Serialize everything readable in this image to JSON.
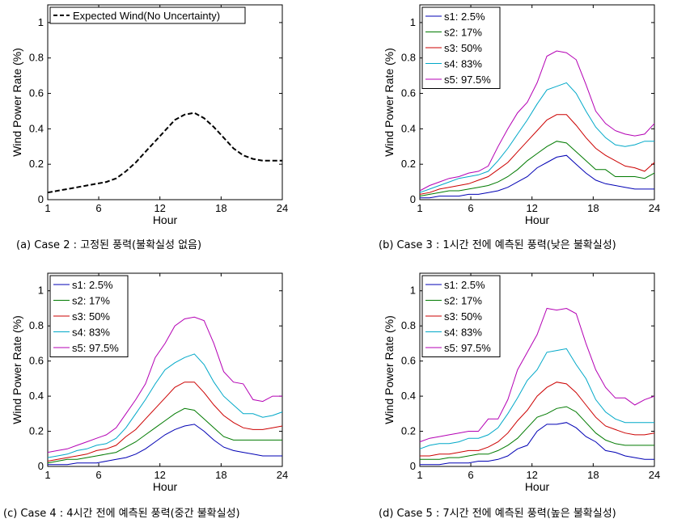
{
  "chart_data": [
    {
      "id": "a",
      "type": "line",
      "caption": "(a) Case 2 : 고정된 풍력(불확실성 없음)",
      "xlabel": "Hour",
      "ylabel": "Wind Power Rate (%)",
      "xlim": [
        1,
        24
      ],
      "ylim": [
        0,
        1.1
      ],
      "xticks": [
        "1",
        "6",
        "12",
        "18",
        "24"
      ],
      "yticks": [
        "0",
        "0.2",
        "0.4",
        "0.6",
        "0.8",
        "1"
      ],
      "legend_position": "top-left",
      "series": [
        {
          "name": "Expected Wind(No Uncertainty)",
          "color": "#000000",
          "dashed": true,
          "values": [
            0.04,
            0.05,
            0.06,
            0.07,
            0.08,
            0.09,
            0.1,
            0.12,
            0.16,
            0.21,
            0.27,
            0.33,
            0.39,
            0.45,
            0.48,
            0.49,
            0.46,
            0.41,
            0.35,
            0.29,
            0.25,
            0.23,
            0.22,
            0.22,
            0.22
          ]
        }
      ]
    },
    {
      "id": "b",
      "type": "line",
      "caption": "(b) Case 3 : 1시간 전에 예측된 풍력(낮은 불확실성)",
      "xlabel": "Hour",
      "ylabel": "Wind Power Rate (%)",
      "xlim": [
        1,
        24
      ],
      "ylim": [
        0,
        1.1
      ],
      "xticks": [
        "1",
        "6",
        "12",
        "18",
        "24"
      ],
      "yticks": [
        "0",
        "0.2",
        "0.4",
        "0.6",
        "0.8",
        "1"
      ],
      "legend_position": "top-left",
      "series": [
        {
          "name": "s1: 2.5%",
          "color": "#0000b4",
          "values": [
            0.01,
            0.01,
            0.02,
            0.02,
            0.02,
            0.03,
            0.03,
            0.04,
            0.05,
            0.07,
            0.1,
            0.13,
            0.18,
            0.21,
            0.24,
            0.25,
            0.2,
            0.15,
            0.11,
            0.09,
            0.08,
            0.07,
            0.06,
            0.06,
            0.06
          ]
        },
        {
          "name": "s2: 17%",
          "color": "#007a00",
          "values": [
            0.02,
            0.03,
            0.04,
            0.05,
            0.05,
            0.06,
            0.07,
            0.08,
            0.1,
            0.13,
            0.17,
            0.22,
            0.26,
            0.3,
            0.33,
            0.32,
            0.27,
            0.22,
            0.17,
            0.17,
            0.13,
            0.13,
            0.13,
            0.12,
            0.15
          ]
        },
        {
          "name": "s3: 50%",
          "color": "#cc0000",
          "values": [
            0.03,
            0.04,
            0.06,
            0.07,
            0.08,
            0.09,
            0.11,
            0.13,
            0.17,
            0.21,
            0.27,
            0.33,
            0.39,
            0.45,
            0.48,
            0.48,
            0.42,
            0.35,
            0.29,
            0.25,
            0.22,
            0.19,
            0.18,
            0.16,
            0.21
          ]
        },
        {
          "name": "s4: 83%",
          "color": "#00a8c8",
          "values": [
            0.04,
            0.06,
            0.08,
            0.1,
            0.12,
            0.13,
            0.14,
            0.16,
            0.22,
            0.29,
            0.37,
            0.45,
            0.54,
            0.62,
            0.64,
            0.66,
            0.6,
            0.5,
            0.41,
            0.35,
            0.31,
            0.3,
            0.31,
            0.33,
            0.33
          ]
        },
        {
          "name": "s5: 97.5%",
          "color": "#b400b4",
          "values": [
            0.05,
            0.08,
            0.1,
            0.12,
            0.13,
            0.15,
            0.16,
            0.19,
            0.3,
            0.4,
            0.49,
            0.55,
            0.66,
            0.81,
            0.84,
            0.83,
            0.79,
            0.65,
            0.5,
            0.43,
            0.39,
            0.37,
            0.36,
            0.37,
            0.43
          ]
        }
      ]
    },
    {
      "id": "c",
      "type": "line",
      "caption": "(c) Case 4 : 4시간 전에 예측된 풍력(중간 불확실성)",
      "xlabel": "Hour",
      "ylabel": "Wind Power Rate (%)",
      "xlim": [
        1,
        24
      ],
      "ylim": [
        0,
        1.1
      ],
      "xticks": [
        "1",
        "6",
        "12",
        "18",
        "24"
      ],
      "yticks": [
        "0",
        "0.2",
        "0.4",
        "0.6",
        "0.8",
        "1"
      ],
      "legend_position": "top-left",
      "series": [
        {
          "name": "s1: 2.5%",
          "color": "#0000b4",
          "values": [
            0.01,
            0.01,
            0.01,
            0.02,
            0.02,
            0.02,
            0.03,
            0.04,
            0.05,
            0.07,
            0.1,
            0.14,
            0.18,
            0.21,
            0.23,
            0.24,
            0.2,
            0.15,
            0.11,
            0.09,
            0.08,
            0.07,
            0.06,
            0.06,
            0.06
          ]
        },
        {
          "name": "s2: 17%",
          "color": "#007a00",
          "values": [
            0.02,
            0.03,
            0.04,
            0.04,
            0.05,
            0.06,
            0.07,
            0.08,
            0.11,
            0.14,
            0.18,
            0.22,
            0.26,
            0.3,
            0.33,
            0.32,
            0.27,
            0.22,
            0.17,
            0.15,
            0.15,
            0.15,
            0.15,
            0.15,
            0.15
          ]
        },
        {
          "name": "s3: 50%",
          "color": "#cc0000",
          "values": [
            0.03,
            0.04,
            0.05,
            0.06,
            0.07,
            0.09,
            0.1,
            0.12,
            0.17,
            0.21,
            0.27,
            0.33,
            0.39,
            0.45,
            0.48,
            0.48,
            0.42,
            0.35,
            0.29,
            0.25,
            0.22,
            0.21,
            0.21,
            0.22,
            0.23
          ]
        },
        {
          "name": "s4: 83%",
          "color": "#00a8c8",
          "values": [
            0.05,
            0.06,
            0.07,
            0.09,
            0.1,
            0.12,
            0.13,
            0.16,
            0.22,
            0.3,
            0.38,
            0.47,
            0.55,
            0.59,
            0.62,
            0.64,
            0.58,
            0.48,
            0.4,
            0.35,
            0.3,
            0.3,
            0.28,
            0.29,
            0.31
          ]
        },
        {
          "name": "s5: 97.5%",
          "color": "#b400b4",
          "values": [
            0.08,
            0.09,
            0.1,
            0.12,
            0.14,
            0.16,
            0.18,
            0.22,
            0.3,
            0.38,
            0.47,
            0.62,
            0.7,
            0.8,
            0.84,
            0.85,
            0.83,
            0.7,
            0.54,
            0.48,
            0.47,
            0.38,
            0.37,
            0.4,
            0.4
          ]
        }
      ]
    },
    {
      "id": "d",
      "type": "line",
      "caption": "(d) Case 5 : 7시간 전에 예측된 풍력(높은 불확실성)",
      "xlabel": "Hour",
      "ylabel": "Wind Power Rate (%)",
      "xlim": [
        1,
        24
      ],
      "ylim": [
        0,
        1.1
      ],
      "xticks": [
        "1",
        "6",
        "12",
        "18",
        "24"
      ],
      "yticks": [
        "0",
        "0.2",
        "0.4",
        "0.6",
        "0.8",
        "1"
      ],
      "legend_position": "top-left",
      "series": [
        {
          "name": "s1: 2.5%",
          "color": "#0000b4",
          "values": [
            0.01,
            0.01,
            0.01,
            0.02,
            0.02,
            0.02,
            0.03,
            0.03,
            0.04,
            0.06,
            0.1,
            0.12,
            0.2,
            0.24,
            0.24,
            0.25,
            0.22,
            0.17,
            0.14,
            0.09,
            0.08,
            0.06,
            0.05,
            0.04,
            0.04
          ]
        },
        {
          "name": "s2: 17%",
          "color": "#007a00",
          "values": [
            0.04,
            0.04,
            0.04,
            0.05,
            0.05,
            0.06,
            0.07,
            0.07,
            0.09,
            0.12,
            0.16,
            0.22,
            0.28,
            0.3,
            0.33,
            0.34,
            0.31,
            0.25,
            0.19,
            0.15,
            0.13,
            0.12,
            0.12,
            0.12,
            0.12
          ]
        },
        {
          "name": "s3: 50%",
          "color": "#cc0000",
          "values": [
            0.06,
            0.06,
            0.07,
            0.07,
            0.08,
            0.09,
            0.09,
            0.11,
            0.14,
            0.19,
            0.26,
            0.32,
            0.4,
            0.45,
            0.48,
            0.47,
            0.42,
            0.35,
            0.28,
            0.23,
            0.21,
            0.19,
            0.18,
            0.18,
            0.19
          ]
        },
        {
          "name": "s4: 83%",
          "color": "#00a8c8",
          "values": [
            0.1,
            0.12,
            0.13,
            0.13,
            0.14,
            0.16,
            0.16,
            0.18,
            0.22,
            0.3,
            0.39,
            0.49,
            0.55,
            0.65,
            0.66,
            0.67,
            0.58,
            0.5,
            0.38,
            0.31,
            0.27,
            0.25,
            0.25,
            0.25,
            0.25
          ]
        },
        {
          "name": "s5: 97.5%",
          "color": "#b400b4",
          "values": [
            0.14,
            0.16,
            0.17,
            0.18,
            0.19,
            0.2,
            0.2,
            0.27,
            0.27,
            0.38,
            0.55,
            0.65,
            0.75,
            0.9,
            0.89,
            0.9,
            0.87,
            0.7,
            0.55,
            0.45,
            0.39,
            0.39,
            0.35,
            0.38,
            0.4
          ]
        }
      ]
    }
  ]
}
